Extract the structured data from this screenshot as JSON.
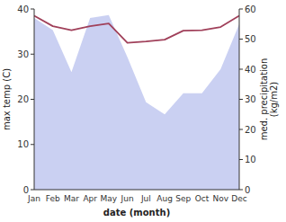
{
  "chart_data": {
    "type": "line",
    "x_label": "date (month)",
    "y_label": "max temp (C)",
    "y2_label": "med. precipitation\n(kg/m2)",
    "categories": [
      "Jan",
      "Feb",
      "Mar",
      "Apr",
      "May",
      "Jun",
      "Jul",
      "Aug",
      "Sep",
      "Oct",
      "Nov",
      "Dec"
    ],
    "series": [
      {
        "type": "area",
        "axis": "y2",
        "color": "#b8c0ee",
        "values": [
          57,
          53,
          39,
          57,
          58,
          44,
          29,
          25,
          32,
          32,
          40,
          55
        ]
      },
      {
        "type": "line",
        "color": "#a0405a",
        "values": [
          38.5,
          36.2,
          35.3,
          36.2,
          36.8,
          32.5,
          32.8,
          33.2,
          35.2,
          35.3,
          36.0,
          38.5
        ]
      }
    ],
    "ylim": [
      0,
      40
    ],
    "yticks": [
      0,
      10,
      20,
      30,
      40
    ],
    "y2lim": [
      0,
      60
    ],
    "y2ticks": [
      0,
      10,
      20,
      30,
      40,
      50,
      60
    ],
    "grid": false
  }
}
